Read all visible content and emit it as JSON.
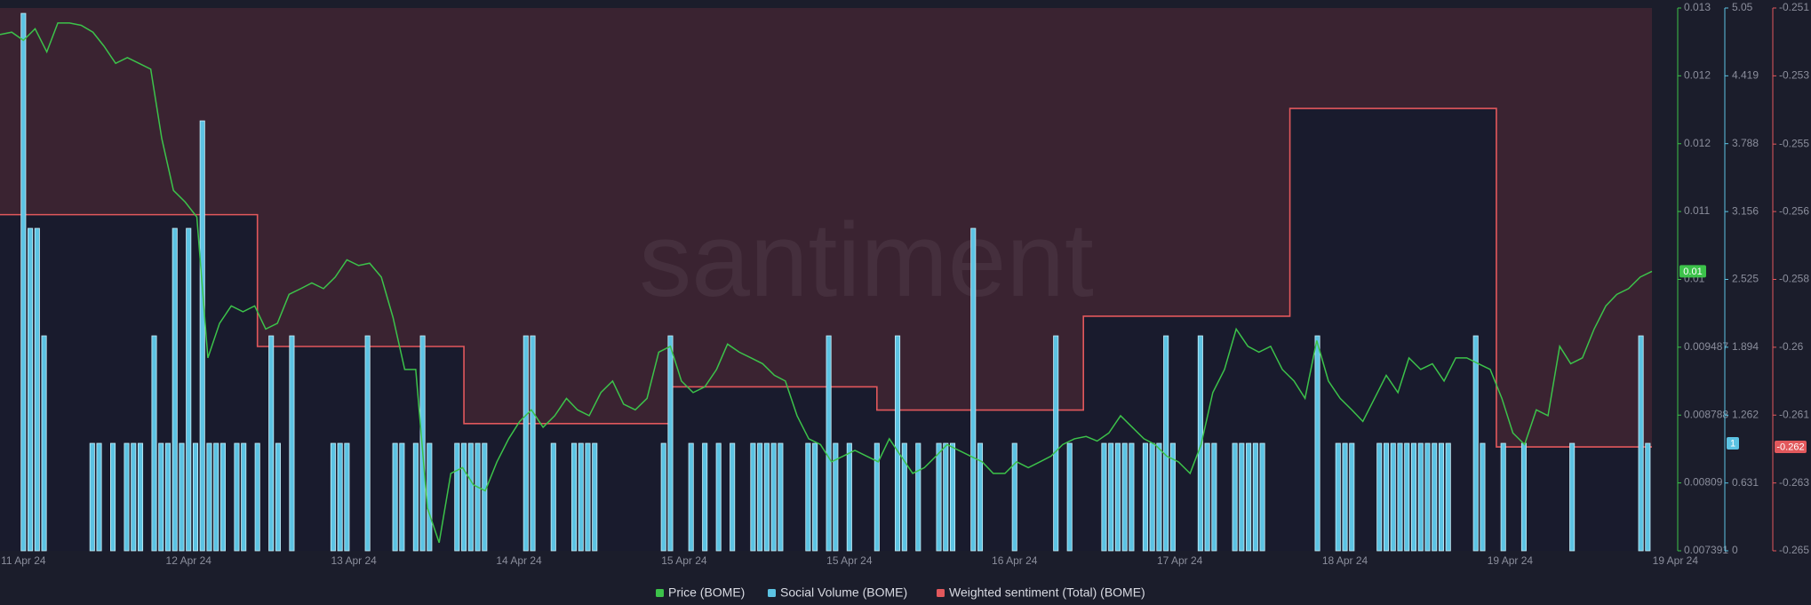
{
  "chart_data": {
    "type": "combo",
    "watermark": "santiment",
    "xlim": [
      -3.4,
      236.6
    ],
    "xticks": [
      {
        "value": 0,
        "label": "11 Apr 24"
      },
      {
        "value": 24,
        "label": "12 Apr 24"
      },
      {
        "value": 48,
        "label": "13 Apr 24"
      },
      {
        "value": 72,
        "label": "14 Apr 24"
      },
      {
        "value": 96,
        "label": "15 Apr 24"
      },
      {
        "value": 120,
        "label": "15 Apr 24"
      },
      {
        "value": 144,
        "label": "16 Apr 24"
      },
      {
        "value": 168,
        "label": "17 Apr 24"
      },
      {
        "value": 192,
        "label": "18 Apr 24"
      },
      {
        "value": 216,
        "label": "19 Apr 24"
      },
      {
        "value": 240,
        "label": "19 Apr 24"
      }
    ],
    "ylim": [
      0.007391,
      0.012979
    ],
    "yticks": [
      0.007391,
      0.00809,
      0.008788,
      0.009487,
      {
        "value": 0.010185,
        "label": "0.01"
      },
      {
        "value": 0.010884,
        "label": "0.011"
      },
      {
        "value": 0.011582,
        "label": "0.012"
      },
      {
        "value": 0.012281,
        "label": "0.012"
      },
      {
        "value": 0.012979,
        "label": "0.013"
      }
    ],
    "y2lim": [
      0,
      5.05
    ],
    "y2ticks": [
      0,
      0.631,
      1.262,
      1.894,
      2.525,
      3.156,
      3.788,
      4.419,
      5.05
    ],
    "y3lim": [
      -0.265,
      -0.251
    ],
    "y3ticks": [
      -0.265,
      {
        "value": -0.26325,
        "label": "-0.263"
      },
      {
        "value": -0.2615,
        "label": "-0.261"
      },
      {
        "value": -0.25975,
        "label": "-0.26"
      },
      -0.258,
      {
        "value": -0.25625,
        "label": "-0.256"
      },
      {
        "value": -0.25451,
        "label": "-0.255"
      },
      {
        "value": -0.25275,
        "label": "-0.253"
      },
      -0.251
    ],
    "series": [
      {
        "name": "Price (BOME)",
        "type": "line",
        "axis": "y",
        "color": "#3cc24a",
        "last_label": "0.01",
        "x": [
          -3.4,
          -1.7,
          0,
          1.7,
          3.4,
          5.0,
          6.7,
          8.4,
          10.1,
          11.7,
          13.4,
          15.1,
          16.8,
          18.5,
          20.1,
          21.8,
          23.5,
          25.2,
          26.8,
          28.5,
          30.2,
          31.9,
          33.6,
          35.2,
          36.9,
          38.6,
          40.3,
          41.9,
          43.6,
          45.3,
          47.0,
          48.7,
          50.3,
          52.0,
          53.7,
          55.4,
          57.0,
          58.7,
          60.4,
          62.1,
          63.8,
          65.4,
          67.1,
          68.8,
          70.5,
          72.1,
          73.8,
          75.5,
          77.2,
          78.9,
          80.5,
          82.2,
          83.9,
          85.6,
          87.2,
          88.9,
          90.6,
          92.3,
          94.0,
          95.6,
          97.3,
          99.0,
          100.7,
          102.3,
          104.0,
          105.7,
          107.4,
          109.1,
          110.7,
          112.4,
          114.1,
          115.8,
          117.4,
          119.1,
          120.8,
          122.5,
          124.2,
          125.8,
          127.5,
          129.2,
          130.9,
          132.6,
          134.2,
          135.9,
          137.6,
          139.3,
          140.9,
          142.6,
          144.3,
          146.0,
          147.7,
          149.3,
          151.0,
          152.7,
          154.4,
          156.0,
          157.7,
          159.4,
          161.1,
          162.8,
          164.4,
          166.1,
          167.8,
          169.5,
          171.1,
          172.8,
          174.5,
          176.2,
          177.9,
          179.5,
          181.2,
          182.9,
          184.6,
          186.2,
          187.9,
          189.6,
          191.3,
          193.0,
          194.6,
          196.3,
          198.0,
          199.7,
          201.3,
          203.0,
          204.7,
          206.4,
          208.1,
          209.7,
          211.4,
          213.1,
          214.8,
          216.4,
          218.1,
          219.8,
          221.5,
          223.2,
          224.8,
          226.5,
          228.2,
          229.9,
          231.5,
          233.2,
          234.9,
          236.6
        ],
        "values": [
          0.012706,
          0.01273,
          0.012646,
          0.012765,
          0.012527,
          0.012825,
          0.012825,
          0.012801,
          0.01273,
          0.012587,
          0.012409,
          0.012468,
          0.012409,
          0.012349,
          0.011636,
          0.011101,
          0.010982,
          0.010827,
          0.009377,
          0.009733,
          0.009912,
          0.009852,
          0.009912,
          0.009674,
          0.009733,
          0.010031,
          0.01009,
          0.010149,
          0.01009,
          0.010209,
          0.010387,
          0.010328,
          0.010352,
          0.010209,
          0.009793,
          0.009258,
          0.009258,
          0.007831,
          0.007474,
          0.008188,
          0.008247,
          0.008069,
          0.008009,
          0.008307,
          0.008544,
          0.008723,
          0.008842,
          0.008663,
          0.008782,
          0.00896,
          0.008842,
          0.008782,
          0.00902,
          0.009139,
          0.008901,
          0.008842,
          0.00896,
          0.009436,
          0.009496,
          0.009139,
          0.00902,
          0.009079,
          0.009258,
          0.009519,
          0.009436,
          0.009377,
          0.009317,
          0.009198,
          0.009139,
          0.008782,
          0.008544,
          0.008485,
          0.008307,
          0.008366,
          0.008425,
          0.008366,
          0.008307,
          0.008544,
          0.008366,
          0.008188,
          0.008247,
          0.008366,
          0.008485,
          0.008425,
          0.008366,
          0.008307,
          0.008188,
          0.008188,
          0.008307,
          0.008247,
          0.008307,
          0.008366,
          0.008485,
          0.008544,
          0.008568,
          0.008521,
          0.008604,
          0.008782,
          0.008663,
          0.008544,
          0.008485,
          0.008366,
          0.008307,
          0.008188,
          0.008485,
          0.00902,
          0.009258,
          0.009674,
          0.009496,
          0.009436,
          0.009496,
          0.009258,
          0.009139,
          0.00896,
          0.009555,
          0.009139,
          0.00896,
          0.008842,
          0.008723,
          0.00896,
          0.009198,
          0.00902,
          0.009377,
          0.009258,
          0.009317,
          0.009139,
          0.009377,
          0.009377,
          0.009317,
          0.009258,
          0.00896,
          0.008604,
          0.008485,
          0.008842,
          0.008782,
          0.009496,
          0.009317,
          0.009377,
          0.009674,
          0.009912,
          0.010031,
          0.01009,
          0.010209,
          0.010268
        ]
      },
      {
        "name": "Social Volume (BOME)",
        "type": "bar",
        "axis": "y2",
        "color": "#5cc3e3",
        "last_label": "1",
        "x": [
          0,
          1,
          2,
          3,
          10,
          11,
          13,
          15,
          16,
          17,
          19,
          20,
          21,
          22,
          23,
          24,
          25,
          26,
          27,
          28,
          29,
          31,
          32,
          34,
          36,
          37,
          39,
          45,
          46,
          47,
          50,
          54,
          55,
          57,
          58,
          59,
          63,
          64,
          65,
          66,
          67,
          73,
          74,
          77,
          80,
          81,
          82,
          83,
          93,
          94,
          97,
          99,
          101,
          103,
          106,
          107,
          108,
          109,
          110,
          114,
          115,
          117,
          118,
          120,
          124,
          127,
          128,
          130,
          133,
          134,
          135,
          138,
          139,
          144,
          150,
          152,
          157,
          158,
          159,
          160,
          161,
          163,
          164,
          165,
          166,
          167,
          171,
          172,
          173,
          176,
          177,
          178,
          179,
          180,
          188,
          191,
          192,
          193,
          197,
          198,
          199,
          200,
          201,
          202,
          203,
          204,
          205,
          206,
          207,
          211,
          212,
          215,
          218,
          225,
          235,
          236
        ],
        "values": [
          5,
          3,
          3,
          2,
          1,
          1,
          1,
          1,
          1,
          1,
          2,
          1,
          1,
          3,
          1,
          3,
          1,
          4,
          1,
          1,
          1,
          1,
          1,
          1,
          2,
          1,
          2,
          1,
          1,
          1,
          2,
          1,
          1,
          1,
          2,
          1,
          1,
          1,
          1,
          1,
          1,
          2,
          2,
          1,
          1,
          1,
          1,
          1,
          1,
          2,
          1,
          1,
          1,
          1,
          1,
          1,
          1,
          1,
          1,
          1,
          1,
          2,
          1,
          1,
          1,
          2,
          1,
          1,
          1,
          1,
          1,
          3,
          1,
          1,
          2,
          1,
          1,
          1,
          1,
          1,
          1,
          1,
          1,
          1,
          2,
          1,
          2,
          1,
          1,
          1,
          1,
          1,
          1,
          1,
          2,
          1,
          1,
          1,
          1,
          1,
          1,
          1,
          1,
          1,
          1,
          1,
          1,
          1,
          1,
          2,
          1,
          1,
          1,
          1,
          2,
          1
        ]
      },
      {
        "name": "Weighted sentiment (Total) (BOME)",
        "type": "step",
        "axis": "y3",
        "color": "#e2585c",
        "last_label": "-0.262",
        "x": [
          -3.4,
          34,
          64,
          94,
          124,
          154,
          184,
          214
        ],
        "values": [
          -0.25633,
          -0.25973,
          -0.26172,
          -0.26077,
          -0.26137,
          -0.25895,
          -0.25359,
          -0.26232
        ]
      }
    ]
  }
}
